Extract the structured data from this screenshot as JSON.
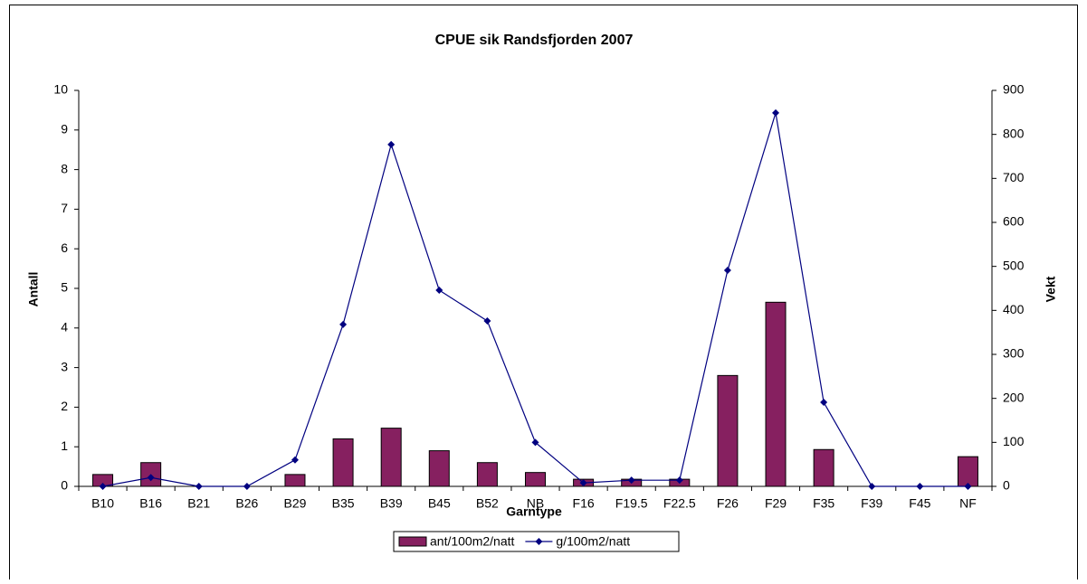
{
  "chart_data": {
    "type": "bar",
    "title": "CPUE sik Randsfjorden 2007",
    "x_label": "Garntype",
    "y_label": "Antall",
    "y2_label": "Vekt",
    "categories": [
      "B10",
      "B16",
      "B21",
      "B26",
      "B29",
      "B35",
      "B39",
      "B45",
      "B52",
      "NB",
      "F16",
      "F19.5",
      "F22.5",
      "F26",
      "F29",
      "F35",
      "F39",
      "F45",
      "NF"
    ],
    "series": [
      {
        "name": "ant/100m2/natt",
        "type": "bar",
        "color": "#862060",
        "values": [
          0.3,
          0.6,
          0,
          0,
          0.3,
          1.2,
          1.47,
          0.9,
          0.6,
          0.35,
          0.18,
          0.18,
          0.18,
          2.8,
          4.65,
          0.93,
          0,
          0,
          0.75
        ]
      },
      {
        "name": "g/100m2/natt",
        "type": "line",
        "axis": "y2",
        "color": "#000080",
        "values": [
          0,
          20,
          0,
          0,
          60,
          368,
          777,
          446,
          376,
          100,
          8,
          14,
          14,
          491,
          849,
          191,
          0,
          0,
          0
        ]
      }
    ],
    "ylim": [
      0,
      10
    ],
    "yticks": [
      0,
      1,
      2,
      3,
      4,
      5,
      6,
      7,
      8,
      9,
      10
    ],
    "y2lim": [
      0,
      900
    ],
    "y2ticks": [
      0,
      100,
      200,
      300,
      400,
      500,
      600,
      700,
      800,
      900
    ],
    "legend": "bottom"
  }
}
